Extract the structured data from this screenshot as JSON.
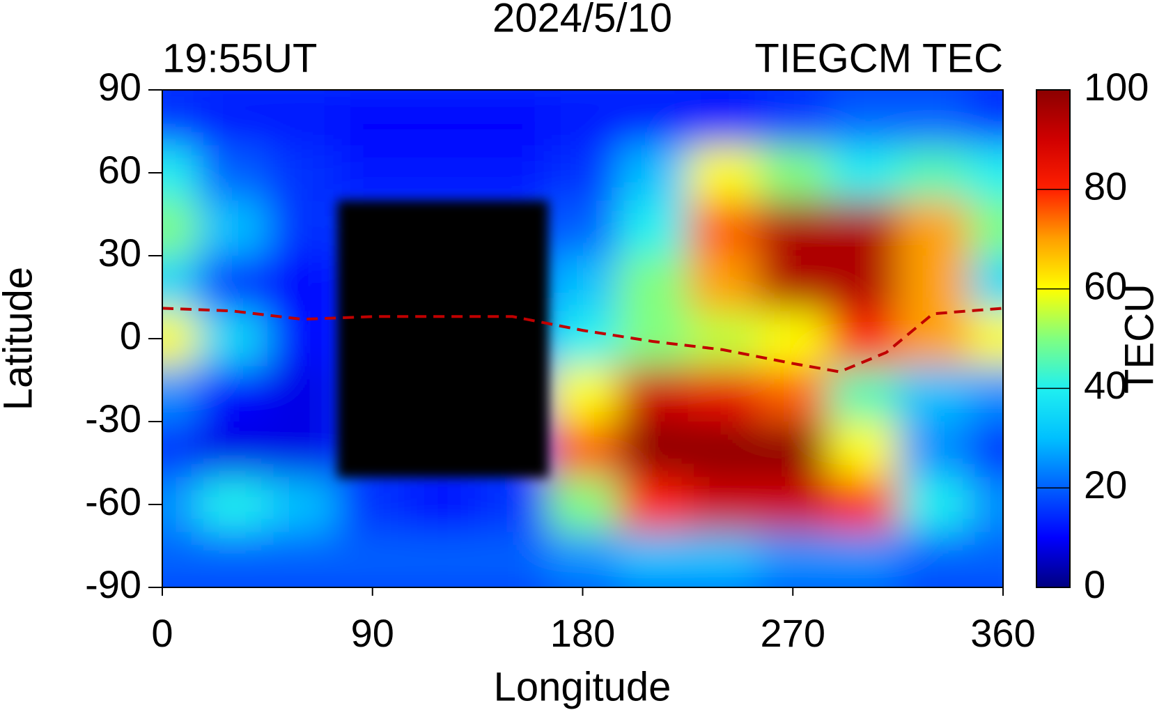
{
  "chart_data": {
    "type": "heatmap",
    "title": "2024/5/10",
    "subtitle_left": "19:55UT",
    "subtitle_right": "TIEGCM TEC",
    "x_label": "Longitude",
    "y_label": "Latitude",
    "colorbar_label": "TECU",
    "xlim": [
      0,
      360
    ],
    "xticks": [
      0,
      90,
      180,
      270,
      360
    ],
    "ylim": [
      -90,
      90
    ],
    "yticks": [
      -90,
      -60,
      -30,
      0,
      30,
      60,
      90
    ],
    "clim": [
      0,
      100
    ],
    "cticks": [
      0,
      20,
      40,
      60,
      80,
      100
    ],
    "colormap": [
      "#00007f",
      "#0000ff",
      "#0060ff",
      "#00c0ff",
      "#20f0f0",
      "#80ff80",
      "#ffff00",
      "#ffa000",
      "#ff2000",
      "#d00000",
      "#8b0000"
    ],
    "null_color": "#000000",
    "lon": [
      0,
      30,
      60,
      90,
      120,
      150,
      180,
      210,
      240,
      270,
      300,
      330
    ],
    "lat": [
      80,
      60,
      40,
      20,
      0,
      -20,
      -40,
      -60,
      -80
    ],
    "z": [
      [
        15,
        12,
        12,
        10,
        10,
        10,
        12,
        12,
        10,
        15,
        20,
        20
      ],
      [
        40,
        20,
        15,
        12,
        12,
        12,
        15,
        30,
        60,
        50,
        40,
        45
      ],
      [
        50,
        30,
        15,
        null,
        null,
        null,
        20,
        40,
        75,
        95,
        95,
        70
      ],
      [
        35,
        15,
        10,
        null,
        null,
        null,
        30,
        50,
        70,
        95,
        95,
        70
      ],
      [
        60,
        35,
        10,
        null,
        null,
        null,
        40,
        50,
        55,
        60,
        80,
        70
      ],
      [
        25,
        10,
        8,
        null,
        null,
        null,
        60,
        90,
        85,
        75,
        45,
        30
      ],
      [
        15,
        8,
        8,
        null,
        null,
        null,
        75,
        100,
        100,
        100,
        60,
        25
      ],
      [
        25,
        40,
        30,
        15,
        10,
        15,
        50,
        80,
        90,
        90,
        80,
        40
      ],
      [
        20,
        20,
        20,
        20,
        20,
        20,
        25,
        30,
        30,
        25,
        25,
        20
      ]
    ],
    "series": [
      {
        "color": "#c00000",
        "x": [
          0,
          30,
          60,
          90,
          120,
          150,
          180,
          210,
          240,
          270,
          290,
          310,
          330,
          360
        ],
        "values": [
          11,
          10,
          7,
          8,
          8,
          8,
          3,
          -1,
          -4,
          -9,
          -12,
          -5,
          9,
          11
        ]
      }
    ]
  }
}
